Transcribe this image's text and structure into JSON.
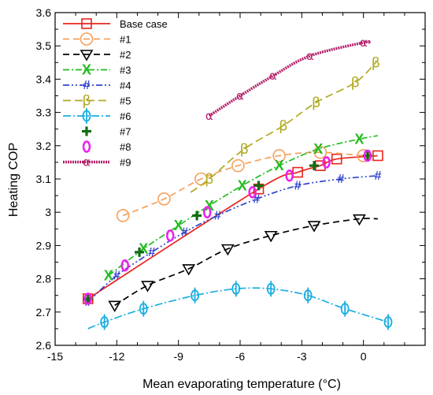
{
  "chart_data": {
    "type": "line",
    "xlabel": "Mean evaporating temperature (°C)",
    "ylabel": "Heating COP",
    "xlim": [
      -15,
      3
    ],
    "ylim": [
      2.6,
      3.6
    ],
    "xticks": [
      -15,
      -12,
      -9,
      -6,
      -3,
      0
    ],
    "yticks": [
      2.6,
      2.7,
      2.8,
      2.9,
      3,
      3.1,
      3.2,
      3.3,
      3.4,
      3.5,
      3.6
    ],
    "grid": false,
    "legend_position": "top-left",
    "series": [
      {
        "name": "Base case",
        "color": "#e8241c",
        "dash": "",
        "marker": "square",
        "x": [
          -13.4,
          -5.1,
          -3.2,
          -2.1,
          -1.3,
          0.7
        ],
        "y": [
          2.74,
          3.07,
          3.12,
          3.14,
          3.16,
          3.17
        ],
        "marker_x": [
          -13.4,
          -5.1,
          -3.2,
          -2.1,
          -1.3,
          0.7
        ],
        "marker_y": [
          2.74,
          3.07,
          3.12,
          3.14,
          3.16,
          3.17
        ]
      },
      {
        "name": "#1",
        "color": "#f5a05a",
        "dash": "8,5",
        "marker": "circle",
        "x": [
          -11.7,
          -9.7,
          -7.9,
          -6.1,
          -4.1,
          -2.1,
          0.0,
          0.7
        ],
        "y": [
          2.99,
          3.04,
          3.1,
          3.14,
          3.17,
          3.18,
          3.17,
          3.17
        ],
        "marker_x": [
          -11.7,
          -9.7,
          -7.9,
          -6.1,
          -4.1,
          -2.1,
          0.0
        ],
        "marker_y": [
          2.99,
          3.04,
          3.1,
          3.14,
          3.17,
          3.18,
          3.17
        ]
      },
      {
        "name": "#2",
        "color": "#000000",
        "dash": "8,5",
        "marker": "triangle-down",
        "x": [
          -12.1,
          -10.5,
          -8.5,
          -6.6,
          -4.5,
          -2.4,
          -0.2,
          0.7
        ],
        "y": [
          2.72,
          2.78,
          2.83,
          2.89,
          2.93,
          2.96,
          2.98,
          2.98
        ],
        "marker_x": [
          -12.1,
          -10.5,
          -8.5,
          -6.6,
          -4.5,
          -2.4,
          -0.2
        ],
        "marker_y": [
          2.72,
          2.78,
          2.83,
          2.89,
          2.93,
          2.96,
          2.98
        ]
      },
      {
        "name": "#3",
        "color": "#22bb22",
        "dash": "8,3,2,3",
        "marker": "x",
        "x": [
          -12.4,
          -10.7,
          -9.0,
          -7.5,
          -5.9,
          -4.1,
          -2.2,
          -0.2,
          0.7
        ],
        "y": [
          2.81,
          2.89,
          2.96,
          3.02,
          3.08,
          3.14,
          3.19,
          3.22,
          3.23
        ],
        "marker_x": [
          -12.4,
          -10.7,
          -9.0,
          -7.5,
          -5.9,
          -4.1,
          -2.2,
          -0.2
        ],
        "marker_y": [
          2.81,
          2.89,
          2.96,
          3.02,
          3.08,
          3.14,
          3.19,
          3.22
        ]
      },
      {
        "name": "#4",
        "color": "#3344cc",
        "dash": "8,3,2,3,2,3",
        "marker": "hash",
        "x": [
          -13.4,
          -12.0,
          -10.3,
          -8.7,
          -7.1,
          -5.2,
          -3.2,
          -1.1,
          0.7
        ],
        "y": [
          2.73,
          2.81,
          2.88,
          2.94,
          2.99,
          3.04,
          3.08,
          3.1,
          3.11
        ],
        "marker_x": [
          -13.4,
          -12.0,
          -10.3,
          -8.7,
          -7.1,
          -5.2,
          -3.2,
          -1.1,
          0.7
        ],
        "marker_y": [
          2.73,
          2.81,
          2.88,
          2.94,
          2.99,
          3.04,
          3.08,
          3.1,
          3.11
        ]
      },
      {
        "name": "#5",
        "color": "#b0aa22",
        "dash": "10,5",
        "marker": "beta",
        "x": [
          -8.4,
          -7.5,
          -5.8,
          -3.9,
          -2.3,
          -0.4,
          0.6
        ],
        "y": [
          3.06,
          3.1,
          3.19,
          3.26,
          3.33,
          3.39,
          3.45
        ],
        "marker_x": [
          -7.5,
          -5.8,
          -3.9,
          -2.3,
          -0.4,
          0.6
        ],
        "marker_y": [
          3.1,
          3.19,
          3.26,
          3.33,
          3.39,
          3.45
        ]
      },
      {
        "name": "#6",
        "color": "#1aaee0",
        "dash": "10,3,2,3",
        "marker": "phi",
        "x": [
          -13.4,
          -12.6,
          -10.7,
          -8.2,
          -6.2,
          -4.5,
          -2.7,
          -0.9,
          1.2
        ],
        "y": [
          2.65,
          2.67,
          2.71,
          2.75,
          2.77,
          2.77,
          2.75,
          2.71,
          2.67
        ],
        "marker_x": [
          -12.6,
          -10.7,
          -8.2,
          -6.2,
          -4.5,
          -2.7,
          -0.9,
          1.2
        ],
        "marker_y": [
          2.67,
          2.71,
          2.75,
          2.77,
          2.77,
          2.75,
          2.71,
          2.67
        ]
      },
      {
        "name": "#7",
        "color": "#136b13",
        "dash": "none",
        "marker": "plus",
        "x": [
          -13.4,
          -10.9,
          -8.1,
          -5.1,
          -2.4,
          0.2
        ],
        "y": [
          2.74,
          2.88,
          2.99,
          3.08,
          3.14,
          3.17
        ],
        "marker_x": [
          -13.4,
          -10.9,
          -8.1,
          -5.1,
          -2.4,
          0.2
        ],
        "marker_y": [
          2.74,
          2.88,
          2.99,
          3.08,
          3.14,
          3.17
        ]
      },
      {
        "name": "#8",
        "color": "#ee22ee",
        "dash": "none",
        "marker": "zero",
        "x": [
          -13.4,
          -11.6,
          -9.4,
          -7.6,
          -5.4,
          -3.6,
          -1.8,
          0.2
        ],
        "y": [
          2.74,
          2.84,
          2.93,
          3.0,
          3.06,
          3.11,
          3.15,
          3.17
        ],
        "marker_x": [
          -13.4,
          -11.6,
          -9.4,
          -7.6,
          -5.4,
          -3.6,
          -1.8,
          0.2
        ],
        "marker_y": [
          2.74,
          2.84,
          2.93,
          3.0,
          3.06,
          3.11,
          3.15,
          3.17
        ]
      },
      {
        "name": "#9",
        "color": "#b5216b",
        "dash": "2,1",
        "marker": "alpha",
        "x": [
          -7.5,
          -6.0,
          -4.4,
          -2.6,
          0.0,
          0.3
        ],
        "y": [
          3.29,
          3.35,
          3.41,
          3.47,
          3.51,
          3.51
        ],
        "marker_x": [
          -7.5,
          -6.0,
          -4.4,
          -2.6,
          0.0
        ],
        "marker_y": [
          3.29,
          3.35,
          3.41,
          3.47,
          3.51
        ]
      }
    ]
  }
}
